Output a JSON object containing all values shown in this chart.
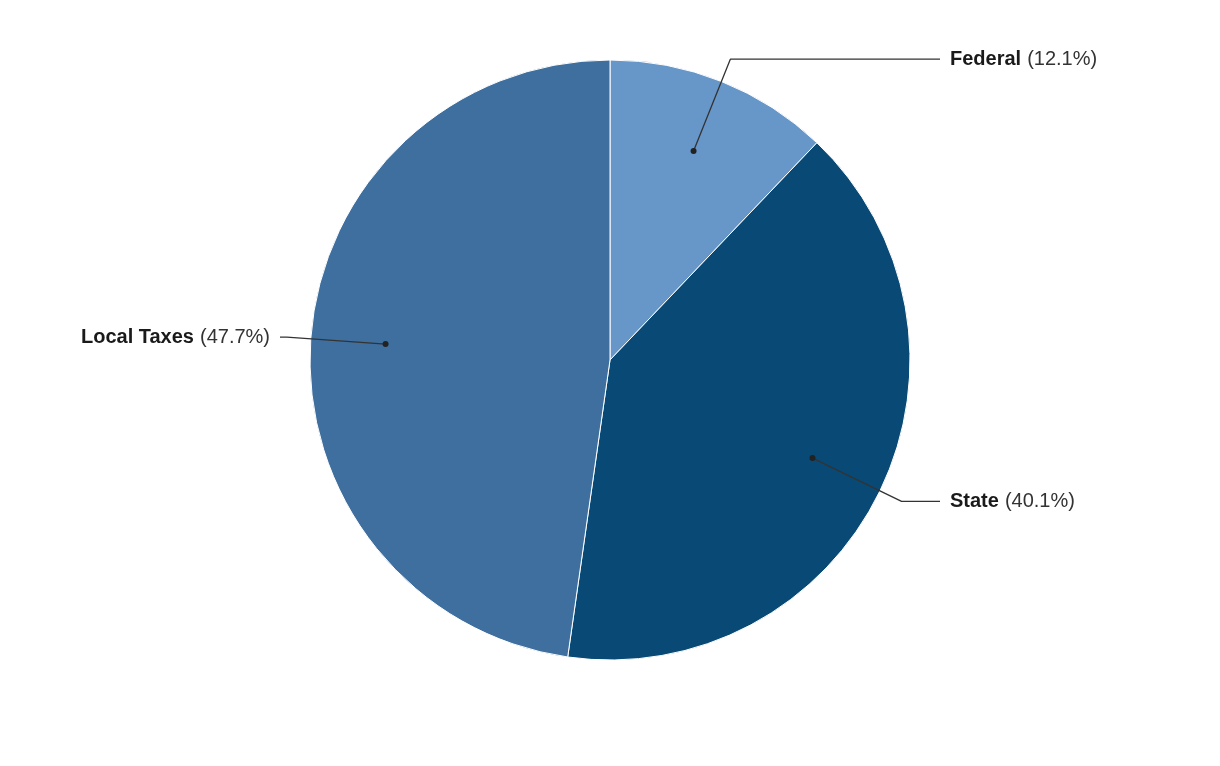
{
  "chart_data": {
    "type": "pie",
    "categories": [
      "Federal",
      "State",
      "Local Taxes"
    ],
    "values": [
      12.1,
      40.1,
      47.7
    ],
    "value_labels": [
      "(12.1%)",
      "(40.1%)",
      "(47.7%)"
    ],
    "colors": [
      "#6796c8",
      "#084a75",
      "#3f6f9e"
    ]
  }
}
